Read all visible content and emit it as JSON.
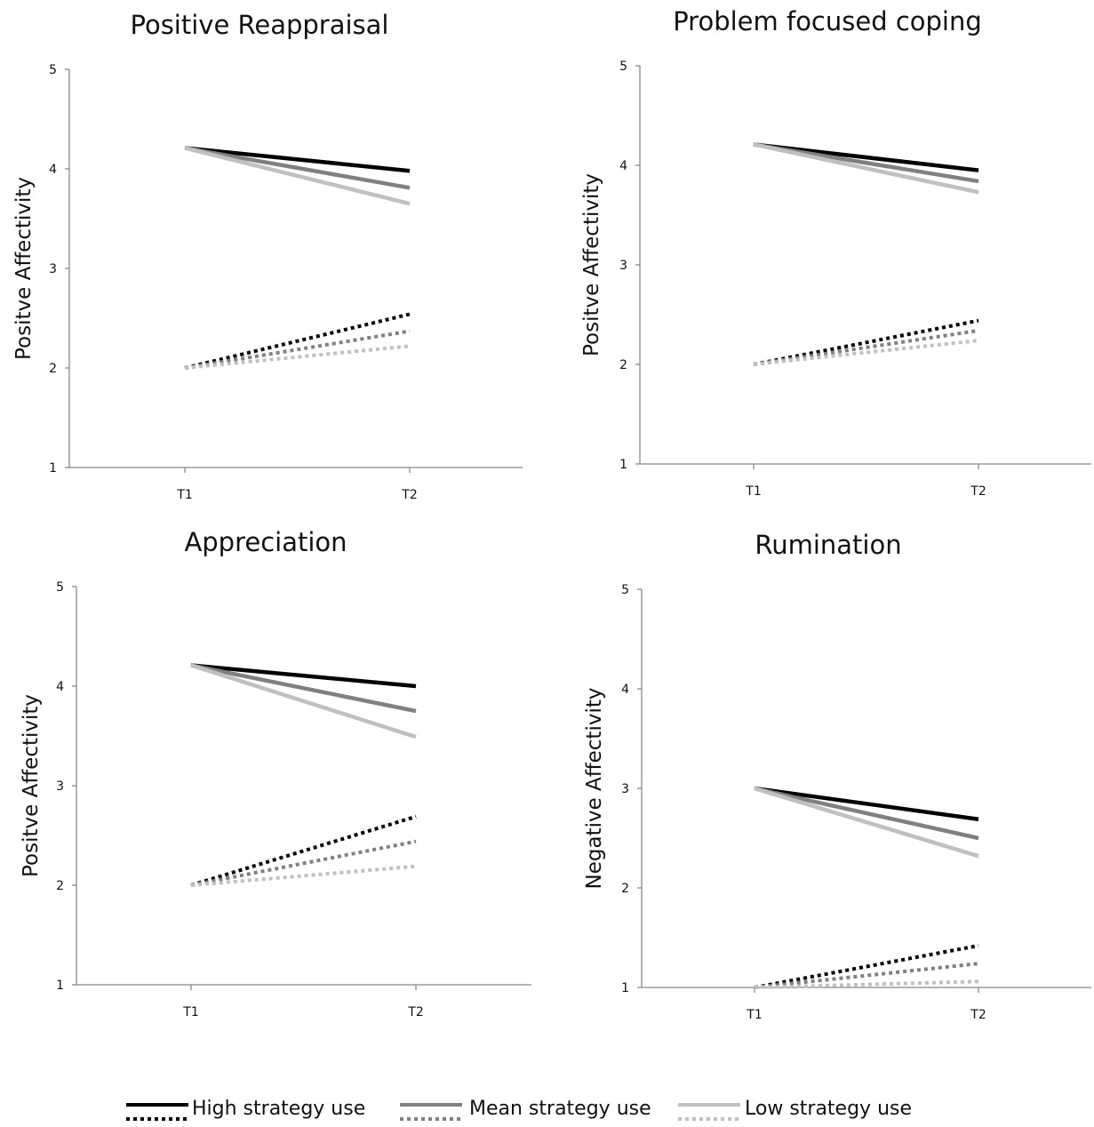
{
  "chart_data": [
    {
      "type": "line",
      "title": "Positive Reappraisal",
      "ylabel": "Positve Affectivity",
      "xlabel": "",
      "categories": [
        "T1",
        "T2"
      ],
      "ylim": [
        1,
        5
      ],
      "yticks": [
        "1",
        "2",
        "3",
        "4",
        "5"
      ],
      "series": [
        {
          "name": "High strategy use",
          "style": "solid",
          "color": "#000000",
          "values": [
            4.21,
            3.98
          ]
        },
        {
          "name": "Mean strategy use",
          "style": "solid",
          "color": "#808080",
          "values": [
            4.21,
            3.81
          ]
        },
        {
          "name": "Low strategy use",
          "style": "solid",
          "color": "#c0c0c0",
          "values": [
            4.21,
            3.65
          ]
        },
        {
          "name": "High strategy use",
          "style": "dotted",
          "color": "#000000",
          "values": [
            2.0,
            2.54
          ]
        },
        {
          "name": "Mean strategy use",
          "style": "dotted",
          "color": "#808080",
          "values": [
            2.0,
            2.37
          ]
        },
        {
          "name": "Low strategy use",
          "style": "dotted",
          "color": "#c0c0c0",
          "values": [
            2.0,
            2.22
          ]
        }
      ]
    },
    {
      "type": "line",
      "title": "Problem focused coping",
      "ylabel": "Positve Affectivity",
      "xlabel": "",
      "categories": [
        "T1",
        "T2"
      ],
      "ylim": [
        1,
        5
      ],
      "yticks": [
        "1",
        "2",
        "3",
        "4",
        "5"
      ],
      "series": [
        {
          "name": "High strategy use",
          "style": "solid",
          "color": "#000000",
          "values": [
            4.21,
            3.95
          ]
        },
        {
          "name": "Mean strategy use",
          "style": "solid",
          "color": "#808080",
          "values": [
            4.21,
            3.84
          ]
        },
        {
          "name": "Low strategy use",
          "style": "solid",
          "color": "#c0c0c0",
          "values": [
            4.21,
            3.73
          ]
        },
        {
          "name": "High strategy use",
          "style": "dotted",
          "color": "#000000",
          "values": [
            2.0,
            2.44
          ]
        },
        {
          "name": "Mean strategy use",
          "style": "dotted",
          "color": "#808080",
          "values": [
            2.0,
            2.34
          ]
        },
        {
          "name": "Low strategy use",
          "style": "dotted",
          "color": "#c0c0c0",
          "values": [
            2.0,
            2.24
          ]
        }
      ]
    },
    {
      "type": "line",
      "title": "Appreciation",
      "ylabel": "Positve Affectivity",
      "xlabel": "",
      "categories": [
        "T1",
        "T2"
      ],
      "ylim": [
        1,
        5
      ],
      "yticks": [
        "1",
        "2",
        "3",
        "4",
        "5"
      ],
      "series": [
        {
          "name": "High strategy use",
          "style": "solid",
          "color": "#000000",
          "values": [
            4.21,
            4.0
          ]
        },
        {
          "name": "Mean strategy use",
          "style": "solid",
          "color": "#808080",
          "values": [
            4.21,
            3.75
          ]
        },
        {
          "name": "Low strategy use",
          "style": "solid",
          "color": "#c0c0c0",
          "values": [
            4.21,
            3.49
          ]
        },
        {
          "name": "High strategy use",
          "style": "dotted",
          "color": "#000000",
          "values": [
            2.0,
            2.69
          ]
        },
        {
          "name": "Mean strategy use",
          "style": "dotted",
          "color": "#808080",
          "values": [
            2.0,
            2.44
          ]
        },
        {
          "name": "Low strategy use",
          "style": "dotted",
          "color": "#c0c0c0",
          "values": [
            2.0,
            2.19
          ]
        }
      ]
    },
    {
      "type": "line",
      "title": "Rumination",
      "ylabel": "Negative Affectivity",
      "xlabel": "",
      "categories": [
        "T1",
        "T2"
      ],
      "ylim": [
        1,
        5
      ],
      "yticks": [
        "1",
        "2",
        "3",
        "4",
        "5"
      ],
      "series": [
        {
          "name": "High strategy use",
          "style": "solid",
          "color": "#000000",
          "values": [
            3.0,
            2.69
          ]
        },
        {
          "name": "Mean strategy use",
          "style": "solid",
          "color": "#808080",
          "values": [
            3.0,
            2.5
          ]
        },
        {
          "name": "Low strategy use",
          "style": "solid",
          "color": "#c0c0c0",
          "values": [
            3.0,
            2.32
          ]
        },
        {
          "name": "High strategy use",
          "style": "dotted",
          "color": "#000000",
          "values": [
            1.0,
            1.42
          ]
        },
        {
          "name": "Mean strategy use",
          "style": "dotted",
          "color": "#808080",
          "values": [
            1.0,
            1.24
          ]
        },
        {
          "name": "Low strategy use",
          "style": "dotted",
          "color": "#c0c0c0",
          "values": [
            1.0,
            1.06
          ]
        }
      ]
    }
  ],
  "legend": {
    "position": "bottom",
    "items": [
      {
        "label": "High strategy use",
        "color": "#000000"
      },
      {
        "label": "Mean strategy use",
        "color": "#808080"
      },
      {
        "label": "Low strategy use",
        "color": "#c0c0c0"
      }
    ]
  }
}
